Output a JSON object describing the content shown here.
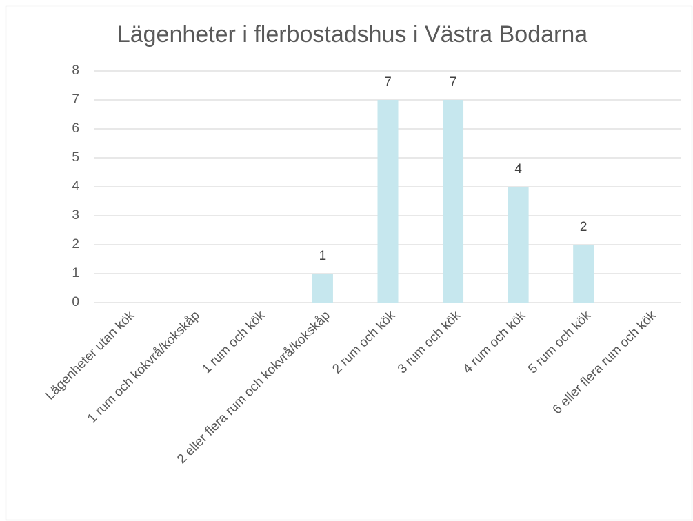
{
  "chart_data": {
    "type": "bar",
    "title": "Lägenheter i flerbostadshus i Västra Bodarna",
    "categories": [
      "Lägenheter utan kök",
      "1 rum och kokvrå/kokskåp",
      "1 rum och kök",
      "2 eller flera rum och kokvrå/kokskåp",
      "2 rum och kök",
      "3 rum och kök",
      "4 rum och kök",
      "5 rum och kök",
      "6 eller flera rum och kök"
    ],
    "values": [
      0,
      0,
      0,
      1,
      7,
      7,
      4,
      2,
      0
    ],
    "color": "#c6e7ee",
    "ylim": [
      0,
      8
    ],
    "yticks": [
      0,
      1,
      2,
      3,
      4,
      5,
      6,
      7,
      8
    ],
    "grid": true
  }
}
